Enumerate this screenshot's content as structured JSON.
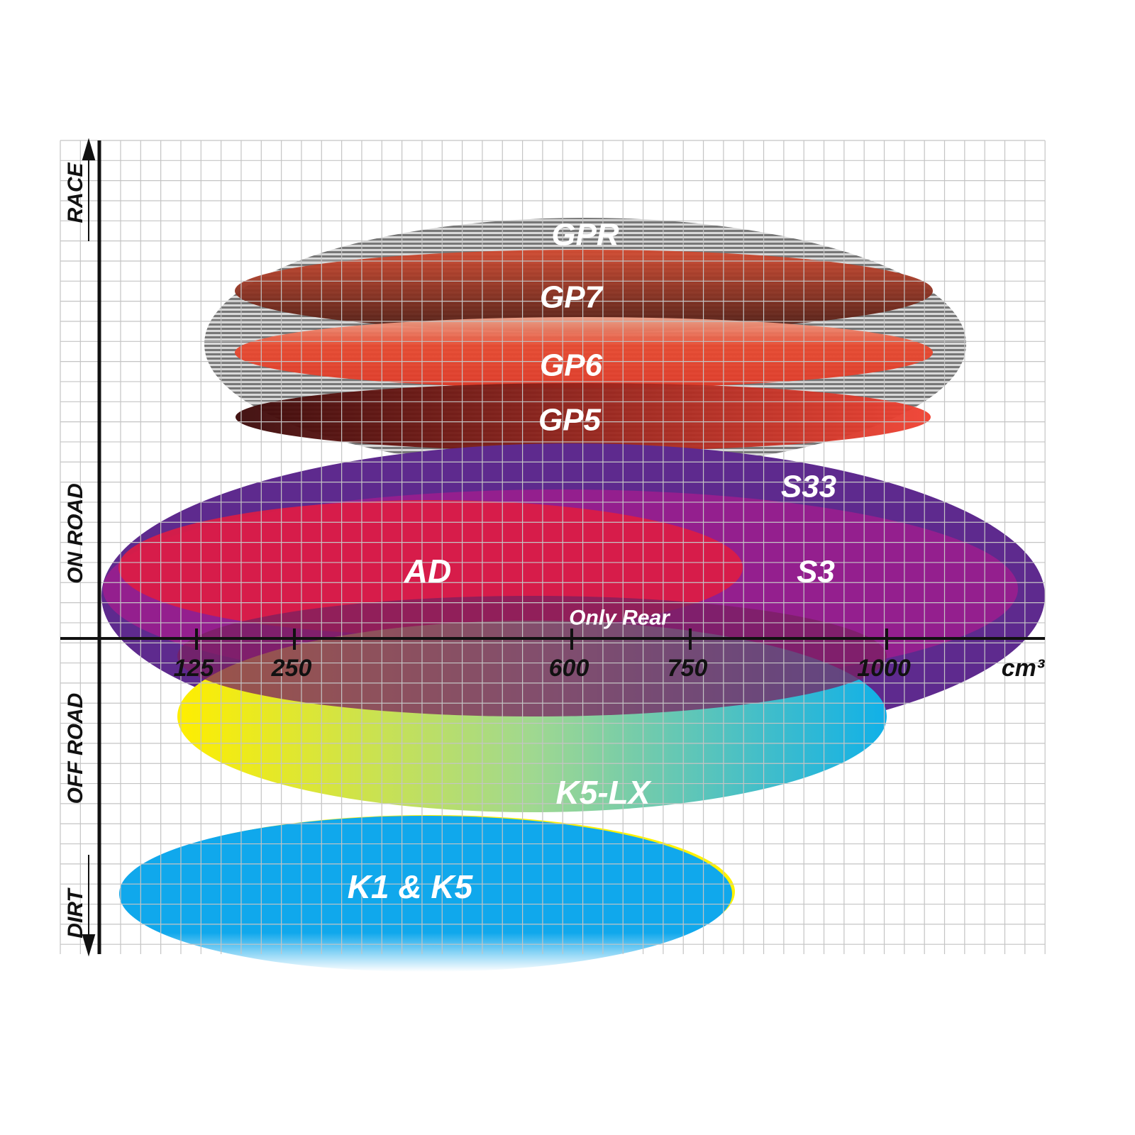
{
  "y_axis_categories": [
    "RACE",
    "ON ROAD",
    "OFF ROAD",
    "DIRT"
  ],
  "x_axis": {
    "unit": "cm³",
    "ticks": [
      "125",
      "250",
      "600",
      "750",
      "1000"
    ]
  },
  "products": [
    {
      "name": "GPR",
      "color": "#9a9a9a"
    },
    {
      "name": "GP7",
      "color": "#8a2a1a"
    },
    {
      "name": "GP6",
      "color": "#e84a2a"
    },
    {
      "name": "GP5",
      "color": "#a01818"
    },
    {
      "name": "S33",
      "color": "#5e2a8e"
    },
    {
      "name": "S3",
      "color": "#9a1e8e"
    },
    {
      "name": "AD",
      "color": "#dc1c44"
    },
    {
      "name": "Only Rear",
      "color": "#8a2060"
    },
    {
      "name": "K5-LX",
      "color": "#20b4e0"
    },
    {
      "name": "K1 & K5",
      "color": "#10a8ec"
    }
  ]
}
